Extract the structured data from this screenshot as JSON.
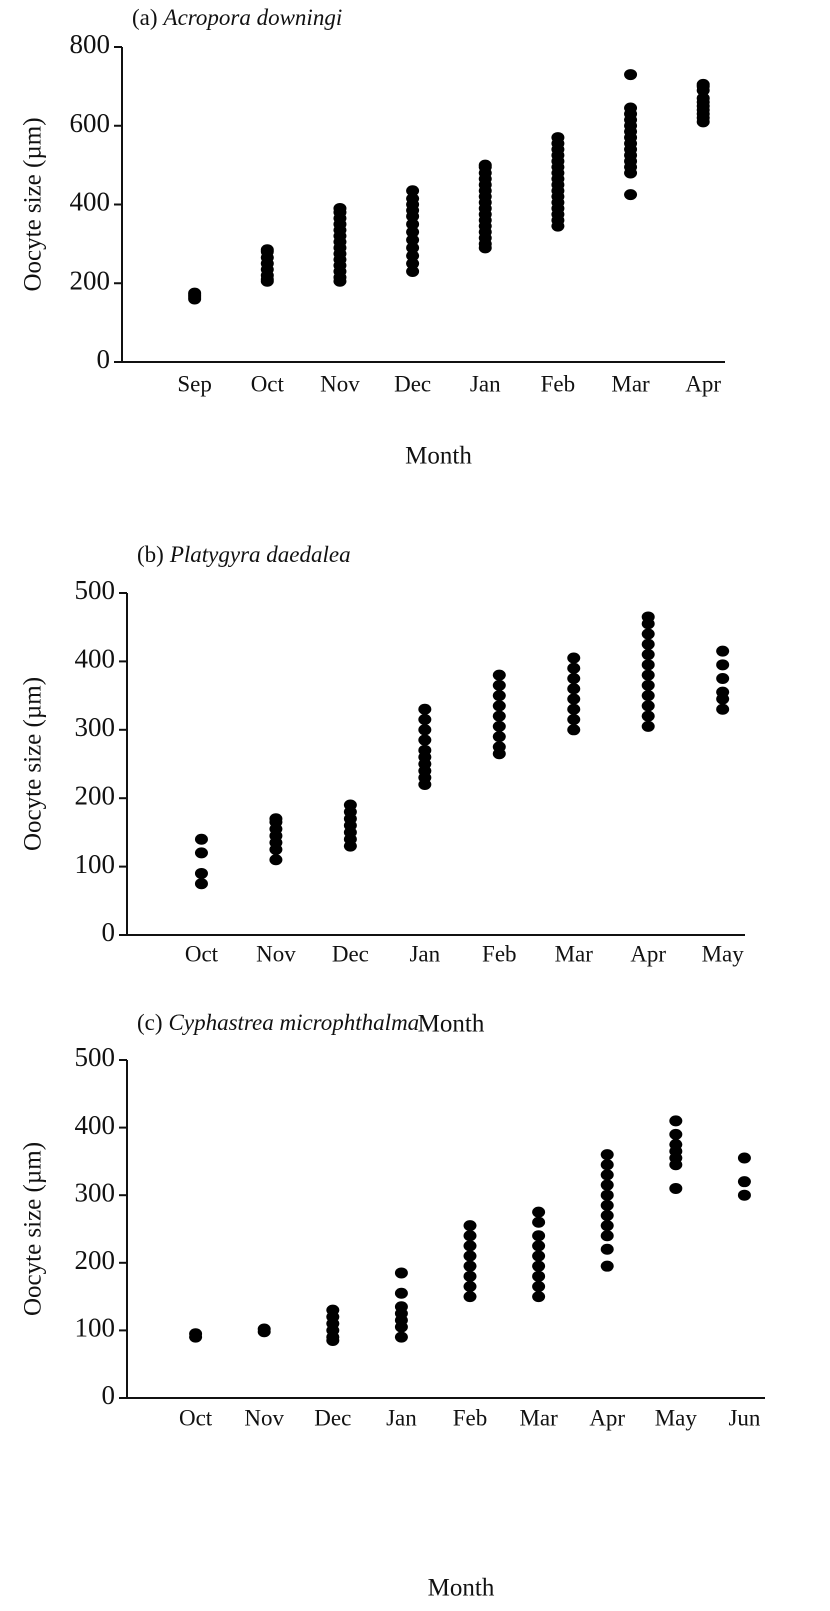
{
  "chart_data": [
    {
      "type": "strip",
      "label": "(a)",
      "species": "Acropora downingi",
      "x_label": "Month",
      "y_label": "Oocyte size (µm)",
      "color": "#000000",
      "ylim": [
        0,
        800
      ],
      "yticks": [
        0,
        200,
        400,
        600,
        800
      ],
      "categories": [
        "Sep",
        "Oct",
        "Nov",
        "Dec",
        "Jan",
        "Feb",
        "Mar",
        "Apr"
      ],
      "values": [
        [
          160,
          165,
          170,
          175
        ],
        [
          205,
          210,
          220,
          235,
          250,
          265,
          280,
          285
        ],
        [
          205,
          215,
          230,
          245,
          260,
          275,
          290,
          305,
          320,
          335,
          350,
          365,
          380,
          390
        ],
        [
          230,
          250,
          270,
          290,
          310,
          330,
          350,
          370,
          385,
          400,
          415,
          435
        ],
        [
          290,
          300,
          315,
          330,
          345,
          360,
          375,
          390,
          405,
          420,
          435,
          450,
          465,
          480,
          495,
          500
        ],
        [
          345,
          360,
          375,
          390,
          405,
          420,
          435,
          450,
          465,
          480,
          495,
          510,
          525,
          540,
          555,
          570
        ],
        [
          425,
          480,
          495,
          510,
          525,
          540,
          555,
          570,
          585,
          600,
          615,
          630,
          645,
          730
        ],
        [
          610,
          620,
          630,
          640,
          650,
          660,
          670,
          690,
          700,
          705
        ]
      ]
    },
    {
      "type": "strip",
      "label": "(b)",
      "species": "Platygyra daedalea",
      "x_label": "Month",
      "y_label": "Oocyte size (µm)",
      "color": "#000000",
      "ylim": [
        0,
        500
      ],
      "yticks": [
        0,
        100,
        200,
        300,
        400,
        500
      ],
      "categories": [
        "Oct",
        "Nov",
        "Dec",
        "Jan",
        "Feb",
        "Mar",
        "Apr",
        "May"
      ],
      "values": [
        [
          75,
          90,
          120,
          140
        ],
        [
          110,
          125,
          135,
          145,
          155,
          165,
          170
        ],
        [
          130,
          140,
          150,
          160,
          170,
          180,
          190
        ],
        [
          220,
          230,
          240,
          250,
          260,
          270,
          285,
          300,
          315,
          330
        ],
        [
          265,
          275,
          290,
          305,
          320,
          335,
          350,
          365,
          380
        ],
        [
          300,
          315,
          330,
          345,
          360,
          375,
          390,
          405
        ],
        [
          305,
          320,
          335,
          350,
          365,
          380,
          395,
          410,
          425,
          440,
          455,
          465
        ],
        [
          330,
          345,
          355,
          375,
          395,
          415
        ]
      ]
    },
    {
      "type": "strip",
      "label": "(c)",
      "species": "Cyphastrea microphthalma",
      "x_label": "Month",
      "y_label": "Oocyte size (µm)",
      "color": "#000000",
      "ylim": [
        0,
        500
      ],
      "yticks": [
        0,
        100,
        200,
        300,
        400,
        500
      ],
      "categories": [
        "Oct",
        "Nov",
        "Dec",
        "Jan",
        "Feb",
        "Mar",
        "Apr",
        "May",
        "Jun"
      ],
      "values": [
        [
          90,
          95
        ],
        [
          98,
          102
        ],
        [
          85,
          90,
          100,
          110,
          120,
          130
        ],
        [
          90,
          105,
          115,
          125,
          135,
          155,
          185
        ],
        [
          150,
          165,
          180,
          195,
          210,
          225,
          240,
          255
        ],
        [
          150,
          165,
          180,
          195,
          210,
          225,
          240,
          260,
          275
        ],
        [
          195,
          220,
          240,
          255,
          270,
          285,
          300,
          315,
          330,
          345,
          360
        ],
        [
          310,
          345,
          355,
          365,
          375,
          390,
          410
        ],
        [
          300,
          320,
          355
        ]
      ]
    }
  ]
}
